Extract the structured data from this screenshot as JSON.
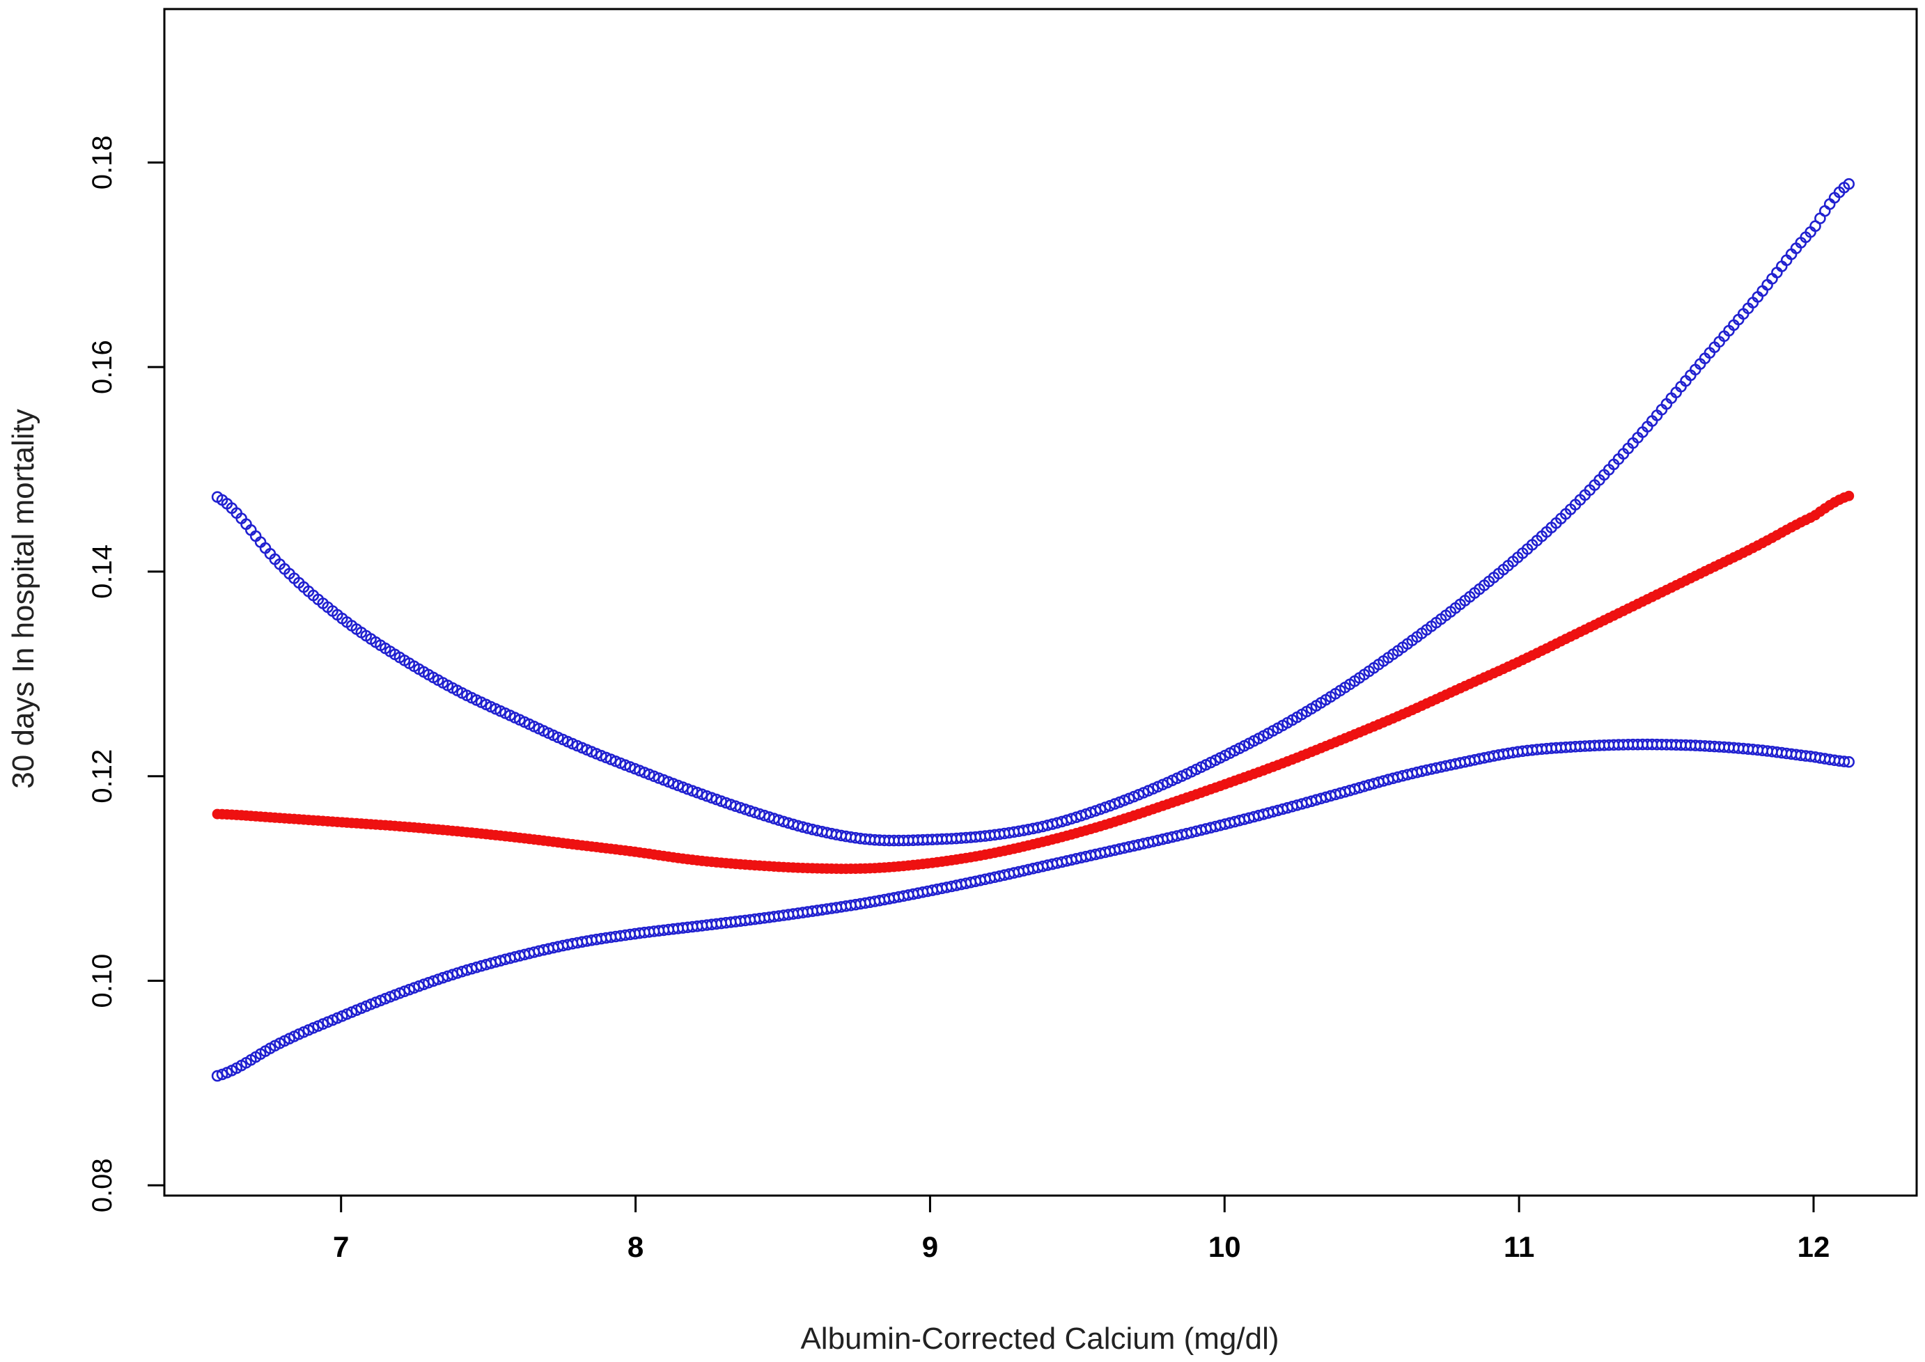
{
  "chart_data": {
    "type": "line",
    "title": "",
    "xlabel": "Albumin-Corrected Calcium (mg/dl)",
    "ylabel": "30 days In hospital mortality",
    "xlim": [
      6.4,
      12.35
    ],
    "ylim": [
      0.079,
      0.195
    ],
    "xticks": [
      7,
      8,
      9,
      10,
      11,
      12
    ],
    "xtick_labels": [
      "7",
      "8",
      "9",
      "10",
      "11",
      "12"
    ],
    "yticks": [
      0.08,
      0.1,
      0.12,
      0.14,
      0.16,
      0.18
    ],
    "ytick_labels": [
      "0.08",
      "0.10",
      "0.12",
      "0.14",
      "0.16",
      "0.18"
    ],
    "grid": false,
    "legend": "none",
    "series": [
      {
        "role": "upper",
        "color": "#2020d0",
        "marker": "open-circle",
        "x": [
          6.58,
          6.8,
          7.0,
          7.2,
          7.4,
          7.6,
          7.8,
          8.0,
          8.2,
          8.4,
          8.6,
          8.8,
          9.0,
          9.2,
          9.4,
          9.6,
          9.8,
          10.0,
          10.2,
          10.4,
          10.6,
          10.8,
          11.0,
          11.2,
          11.4,
          11.6,
          11.8,
          12.0,
          12.12
        ],
        "values": [
          0.1473,
          0.1405,
          0.1355,
          0.1316,
          0.1283,
          0.1256,
          0.123,
          0.1207,
          0.1185,
          0.1165,
          0.1148,
          0.1138,
          0.1138,
          0.1142,
          0.1152,
          0.117,
          0.1193,
          0.122,
          0.125,
          0.1285,
          0.1325,
          0.1368,
          0.1415,
          0.1468,
          0.153,
          0.1598,
          0.1665,
          0.1735,
          0.1779
        ]
      },
      {
        "role": "estimate",
        "color": "#ee1111",
        "marker": "filled-circle",
        "x": [
          6.58,
          6.8,
          7.0,
          7.2,
          7.4,
          7.6,
          7.8,
          8.0,
          8.2,
          8.4,
          8.6,
          8.8,
          9.0,
          9.2,
          9.4,
          9.6,
          9.8,
          10.0,
          10.2,
          10.4,
          10.6,
          10.8,
          11.0,
          11.2,
          11.4,
          11.6,
          11.8,
          12.0,
          12.12
        ],
        "values": [
          0.1163,
          0.1159,
          0.1155,
          0.1151,
          0.1146,
          0.114,
          0.1133,
          0.1126,
          0.1118,
          0.1113,
          0.111,
          0.111,
          0.1115,
          0.1124,
          0.1137,
          0.1153,
          0.1172,
          0.1192,
          0.1213,
          0.1236,
          0.126,
          0.1286,
          0.1312,
          0.134,
          0.1368,
          0.1396,
          0.1424,
          0.1454,
          0.1474
        ]
      },
      {
        "role": "lower",
        "color": "#2020d0",
        "marker": "open-circle",
        "x": [
          6.58,
          6.8,
          7.0,
          7.2,
          7.4,
          7.6,
          7.8,
          8.0,
          8.2,
          8.4,
          8.6,
          8.8,
          9.0,
          9.2,
          9.4,
          9.6,
          9.8,
          10.0,
          10.2,
          10.4,
          10.6,
          10.8,
          11.0,
          11.2,
          11.4,
          11.6,
          11.8,
          12.0,
          12.12
        ],
        "values": [
          0.0907,
          0.094,
          0.0965,
          0.0988,
          0.1008,
          0.1024,
          0.1037,
          0.1046,
          0.1053,
          0.106,
          0.1068,
          0.1077,
          0.1088,
          0.11,
          0.1113,
          0.1126,
          0.1139,
          0.1153,
          0.1168,
          0.1184,
          0.12,
          0.1213,
          0.1224,
          0.1229,
          0.1231,
          0.123,
          0.1226,
          0.1219,
          0.1214
        ]
      }
    ]
  }
}
